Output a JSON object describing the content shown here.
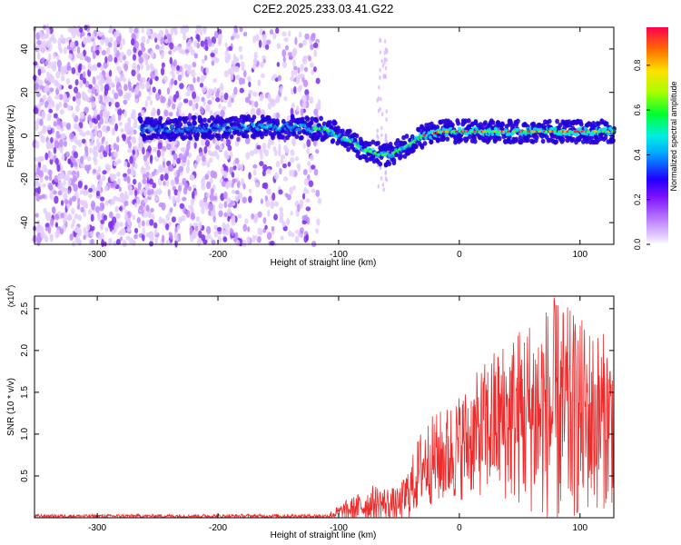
{
  "figure_title": "C2E2.2025.233.03.41.G22",
  "chart_data": [
    {
      "type": "heatmap",
      "title": "C2E2.2025.233.03.41.G22",
      "xlabel": "Height of straight line (km)",
      "ylabel": "Frequency (Hz)",
      "xlim": [
        -352,
        128
      ],
      "ylim": [
        -50,
        50
      ],
      "x_ticks": [
        -300,
        -200,
        -100,
        0,
        100
      ],
      "x_tick_labels": [
        "-300",
        "-200",
        "-100",
        "0",
        "100"
      ],
      "y_ticks": [
        40,
        20,
        0,
        -20,
        -40
      ],
      "y_tick_labels": [
        "40",
        "20",
        "0",
        "-20",
        "-40"
      ],
      "colorbar": {
        "label": "Normalized spectral amplitude",
        "range": [
          0,
          0.97
        ],
        "ticks": [
          0.0,
          0.2,
          0.4,
          0.6,
          0.8
        ],
        "tick_labels": [
          "0.0",
          "0.2",
          "0.4",
          "0.6",
          "0.8"
        ],
        "colormap": [
          "#ffffff",
          "#c89bff",
          "#7b1fe6",
          "#2a00ff",
          "#00e5ff",
          "#00ff40",
          "#c8ff00",
          "#ffd000",
          "#ff1040"
        ]
      },
      "ridge_center": [
        {
          "x": -260,
          "f": 3
        },
        {
          "x": -180,
          "f": 4
        },
        {
          "x": -140,
          "f": 4
        },
        {
          "x": -110,
          "f": 3
        },
        {
          "x": -95,
          "f": -1
        },
        {
          "x": -80,
          "f": -6
        },
        {
          "x": -65,
          "f": -9
        },
        {
          "x": -55,
          "f": -8
        },
        {
          "x": -45,
          "f": -5
        },
        {
          "x": -30,
          "f": 0
        },
        {
          "x": -15,
          "f": 2
        },
        {
          "x": 0,
          "f": 2
        },
        {
          "x": 60,
          "f": 2
        },
        {
          "x": 125,
          "f": 2
        }
      ]
    },
    {
      "type": "line",
      "xlabel": "Height of straight line (km)",
      "ylabel": "SNR (10 * v/v)",
      "y_multiplier_label": "(x10",
      "y_multiplier_exponent": "4",
      "xlim": [
        -352,
        128
      ],
      "ylim": [
        0,
        26500
      ],
      "x_ticks": [
        -300,
        -200,
        -100,
        0,
        100
      ],
      "x_tick_labels": [
        "-300",
        "-200",
        "-100",
        "0",
        "100"
      ],
      "y_ticks": [
        5000,
        10000,
        15000,
        20000,
        25000
      ],
      "y_tick_labels": [
        "0.5",
        "1.0",
        "1.5",
        "2.0",
        "2.5"
      ],
      "line_color": "#ee2a2a",
      "envelope": [
        {
          "x": -352,
          "mean": 200,
          "amp": 200
        },
        {
          "x": -110,
          "mean": 200,
          "amp": 250
        },
        {
          "x": -95,
          "mean": 800,
          "amp": 1200
        },
        {
          "x": -70,
          "mean": 1800,
          "amp": 2200
        },
        {
          "x": -50,
          "mean": 1500,
          "amp": 2000
        },
        {
          "x": -40,
          "mean": 3500,
          "amp": 3500
        },
        {
          "x": -30,
          "mean": 6500,
          "amp": 5000
        },
        {
          "x": -10,
          "mean": 7500,
          "amp": 6000
        },
        {
          "x": 10,
          "mean": 9500,
          "amp": 7000
        },
        {
          "x": 30,
          "mean": 11500,
          "amp": 9000
        },
        {
          "x": 60,
          "mean": 12500,
          "amp": 12000
        },
        {
          "x": 80,
          "mean": 12500,
          "amp": 14000
        },
        {
          "x": 100,
          "mean": 12000,
          "amp": 12000
        },
        {
          "x": 128,
          "mean": 11500,
          "amp": 10000
        }
      ]
    }
  ]
}
